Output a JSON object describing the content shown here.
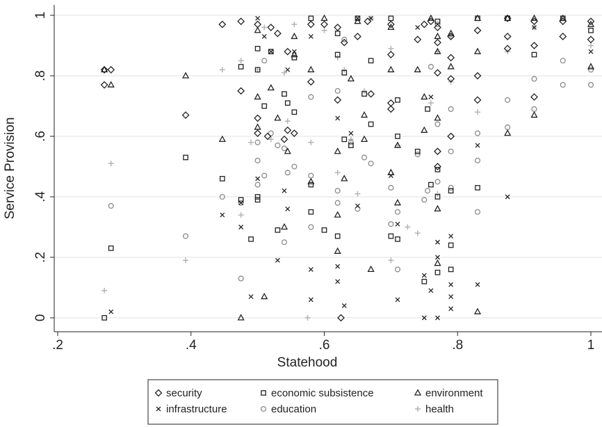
{
  "chart_data": {
    "type": "scatter",
    "xlabel": "Statehood",
    "ylabel": "Service Provision",
    "xlim": [
      0.2,
      1.0
    ],
    "ylim": [
      0,
      1.0
    ],
    "xticks": [
      ".2",
      ".4",
      ".6",
      ".8",
      "1"
    ],
    "yticks": [
      "0",
      ".2",
      ".4",
      ".6",
      ".8",
      "1"
    ],
    "grid": "horizontal",
    "legend_position": "bottom",
    "colors": {
      "black": "#222222",
      "gray": "#8a8a8a",
      "light": "#b4b4b4",
      "grid": "#e6e6e6"
    },
    "series": [
      {
        "name": "security",
        "marker": "diamond",
        "color": "black",
        "points": [
          [
            0.27,
            0.82
          ],
          [
            0.28,
            0.82
          ],
          [
            0.27,
            0.77
          ],
          [
            0.392,
            0.67
          ],
          [
            0.447,
            0.97
          ],
          [
            0.475,
            0.98
          ],
          [
            0.475,
            0.75
          ],
          [
            0.5,
            0.97
          ],
          [
            0.5,
            0.66
          ],
          [
            0.5,
            0.61
          ],
          [
            0.515,
            0.6
          ],
          [
            0.52,
            0.96
          ],
          [
            0.53,
            0.94
          ],
          [
            0.54,
            0.59
          ],
          [
            0.545,
            0.88
          ],
          [
            0.545,
            0.62
          ],
          [
            0.555,
            0.61
          ],
          [
            0.58,
            0.97
          ],
          [
            0.58,
            0.78
          ],
          [
            0.6,
            0.97
          ],
          [
            0.62,
            0.96
          ],
          [
            0.62,
            0.72
          ],
          [
            0.625,
            0.0
          ],
          [
            0.63,
            0.91
          ],
          [
            0.65,
            0.93
          ],
          [
            0.665,
            0.98
          ],
          [
            0.67,
            0.74
          ],
          [
            0.7,
            0.97
          ],
          [
            0.7,
            0.87
          ],
          [
            0.7,
            0.71
          ],
          [
            0.7,
            0.69
          ],
          [
            0.74,
            0.92
          ],
          [
            0.75,
            0.97
          ],
          [
            0.76,
            0.98
          ],
          [
            0.77,
            0.96
          ],
          [
            0.77,
            0.91
          ],
          [
            0.77,
            0.81
          ],
          [
            0.77,
            0.55
          ],
          [
            0.77,
            0.5
          ],
          [
            0.79,
            0.93
          ],
          [
            0.79,
            0.86
          ],
          [
            0.79,
            0.79
          ],
          [
            0.79,
            0.6
          ],
          [
            0.83,
            0.95
          ],
          [
            0.83,
            0.8
          ],
          [
            0.83,
            0.72
          ],
          [
            0.875,
            0.99
          ],
          [
            0.875,
            0.93
          ],
          [
            0.875,
            0.89
          ],
          [
            0.915,
            0.98
          ],
          [
            0.915,
            0.9
          ],
          [
            0.915,
            0.73
          ],
          [
            0.958,
            0.98
          ],
          [
            0.958,
            0.93
          ],
          [
            1.0,
            0.98
          ],
          [
            1.0,
            0.92
          ]
        ]
      },
      {
        "name": "economic subsistence",
        "marker": "square",
        "color": "black",
        "points": [
          [
            0.27,
            0.0
          ],
          [
            0.28,
            0.23
          ],
          [
            0.392,
            0.53
          ],
          [
            0.447,
            0.46
          ],
          [
            0.475,
            0.83
          ],
          [
            0.475,
            0.39
          ],
          [
            0.49,
            0.26
          ],
          [
            0.5,
            0.89
          ],
          [
            0.5,
            0.82
          ],
          [
            0.5,
            0.4
          ],
          [
            0.5,
            0.39
          ],
          [
            0.51,
            0.7
          ],
          [
            0.52,
            0.88
          ],
          [
            0.53,
            0.29
          ],
          [
            0.54,
            0.74
          ],
          [
            0.545,
            0.71
          ],
          [
            0.555,
            0.86
          ],
          [
            0.555,
            0.68
          ],
          [
            0.58,
            0.99
          ],
          [
            0.58,
            0.44
          ],
          [
            0.58,
            0.35
          ],
          [
            0.6,
            0.29
          ],
          [
            0.62,
            0.27
          ],
          [
            0.62,
            0.94
          ],
          [
            0.62,
            0.87
          ],
          [
            0.63,
            0.81
          ],
          [
            0.63,
            0.59
          ],
          [
            0.64,
            0.57
          ],
          [
            0.65,
            0.99
          ],
          [
            0.66,
            0.74
          ],
          [
            0.67,
            0.85
          ],
          [
            0.67,
            0.64
          ],
          [
            0.7,
            0.99
          ],
          [
            0.7,
            0.27
          ],
          [
            0.71,
            0.72
          ],
          [
            0.71,
            0.6
          ],
          [
            0.71,
            0.26
          ],
          [
            0.74,
            0.55
          ],
          [
            0.75,
            0.12
          ],
          [
            0.755,
            0.69
          ],
          [
            0.76,
            0.44
          ],
          [
            0.77,
            0.4
          ],
          [
            0.77,
            0.49
          ],
          [
            0.77,
            0.15
          ],
          [
            0.77,
            0.98
          ],
          [
            0.79,
            0.24
          ],
          [
            0.79,
            0.16
          ],
          [
            0.79,
            0.42
          ],
          [
            0.83,
            0.43
          ],
          [
            0.83,
            0.99
          ],
          [
            0.875,
            0.99
          ],
          [
            0.915,
            0.87
          ],
          [
            0.958,
            0.99
          ],
          [
            1.0,
            0.95
          ]
        ]
      },
      {
        "name": "environment",
        "marker": "triangle",
        "color": "black",
        "points": [
          [
            0.27,
            0.82
          ],
          [
            0.28,
            0.77
          ],
          [
            0.392,
            0.8
          ],
          [
            0.447,
            0.59
          ],
          [
            0.475,
            0.0
          ],
          [
            0.5,
            0.63
          ],
          [
            0.5,
            0.73
          ],
          [
            0.5,
            0.95
          ],
          [
            0.51,
            0.07
          ],
          [
            0.52,
            0.76
          ],
          [
            0.53,
            0.66
          ],
          [
            0.54,
            0.3
          ],
          [
            0.545,
            0.55
          ],
          [
            0.555,
            0.87
          ],
          [
            0.555,
            0.93
          ],
          [
            0.58,
            0.82
          ],
          [
            0.58,
            0.45
          ],
          [
            0.6,
            0.99
          ],
          [
            0.62,
            0.55
          ],
          [
            0.62,
            0.22
          ],
          [
            0.62,
            0.34
          ],
          [
            0.63,
            0.46
          ],
          [
            0.64,
            0.79
          ],
          [
            0.65,
            0.98
          ],
          [
            0.66,
            0.67
          ],
          [
            0.66,
            0.59
          ],
          [
            0.67,
            0.16
          ],
          [
            0.7,
            0.96
          ],
          [
            0.7,
            0.82
          ],
          [
            0.7,
            0.48
          ],
          [
            0.71,
            0.38
          ],
          [
            0.71,
            0.57
          ],
          [
            0.74,
            0.82
          ],
          [
            0.75,
            0.73
          ],
          [
            0.75,
            0.62
          ],
          [
            0.76,
            0.99
          ],
          [
            0.77,
            0.36
          ],
          [
            0.77,
            0.18
          ],
          [
            0.77,
            0.93
          ],
          [
            0.77,
            0.88
          ],
          [
            0.77,
            0.66
          ],
          [
            0.79,
            0.83
          ],
          [
            0.79,
            0.94
          ],
          [
            0.83,
            0.02
          ],
          [
            0.83,
            0.88
          ],
          [
            0.83,
            0.99
          ],
          [
            0.875,
            0.61
          ],
          [
            0.875,
            0.99
          ],
          [
            0.915,
            0.67
          ],
          [
            0.915,
            0.99
          ],
          [
            0.958,
            0.99
          ],
          [
            1.0,
            0.83
          ],
          [
            1.0,
            0.97
          ]
        ]
      },
      {
        "name": "infrastructure",
        "marker": "x",
        "color": "black",
        "points": [
          [
            0.28,
            0.02
          ],
          [
            0.447,
            0.34
          ],
          [
            0.475,
            0.3
          ],
          [
            0.475,
            0.38
          ],
          [
            0.49,
            0.07
          ],
          [
            0.5,
            0.99
          ],
          [
            0.5,
            0.46
          ],
          [
            0.51,
            0.93
          ],
          [
            0.52,
            0.88
          ],
          [
            0.53,
            0.19
          ],
          [
            0.54,
            0.42
          ],
          [
            0.545,
            0.36
          ],
          [
            0.545,
            0.82
          ],
          [
            0.555,
            0.88
          ],
          [
            0.58,
            0.06
          ],
          [
            0.58,
            0.16
          ],
          [
            0.58,
            0.93
          ],
          [
            0.62,
            0.17
          ],
          [
            0.62,
            0.12
          ],
          [
            0.62,
            0.66
          ],
          [
            0.63,
            0.04
          ],
          [
            0.64,
            0.61
          ],
          [
            0.65,
            0.99
          ],
          [
            0.65,
            0.37
          ],
          [
            0.67,
            0.99
          ],
          [
            0.7,
            0.47
          ],
          [
            0.71,
            0.06
          ],
          [
            0.71,
            0.31
          ],
          [
            0.74,
            0.96
          ],
          [
            0.75,
            0.0
          ],
          [
            0.75,
            0.14
          ],
          [
            0.76,
            0.73
          ],
          [
            0.76,
            0.09
          ],
          [
            0.77,
            0.25
          ],
          [
            0.77,
            0.0
          ],
          [
            0.77,
            0.2
          ],
          [
            0.79,
            0.27
          ],
          [
            0.79,
            0.11
          ],
          [
            0.79,
            0.07
          ],
          [
            0.79,
            0.03
          ],
          [
            0.83,
            0.57
          ],
          [
            0.83,
            0.11
          ],
          [
            0.875,
            0.4
          ],
          [
            0.915,
            0.96
          ],
          [
            1.0,
            0.88
          ]
        ]
      },
      {
        "name": "education",
        "marker": "circle",
        "color": "gray",
        "points": [
          [
            0.28,
            0.37
          ],
          [
            0.392,
            0.27
          ],
          [
            0.447,
            0.4
          ],
          [
            0.475,
            0.13
          ],
          [
            0.475,
            0.38
          ],
          [
            0.5,
            0.58
          ],
          [
            0.5,
            0.52
          ],
          [
            0.5,
            0.44
          ],
          [
            0.51,
            0.47
          ],
          [
            0.51,
            0.85
          ],
          [
            0.52,
            0.61
          ],
          [
            0.53,
            0.57
          ],
          [
            0.54,
            0.25
          ],
          [
            0.54,
            0.56
          ],
          [
            0.545,
            0.48
          ],
          [
            0.555,
            0.5
          ],
          [
            0.58,
            0.3
          ],
          [
            0.58,
            0.47
          ],
          [
            0.58,
            0.73
          ],
          [
            0.62,
            0.38
          ],
          [
            0.62,
            0.42
          ],
          [
            0.62,
            0.75
          ],
          [
            0.63,
            0.92
          ],
          [
            0.64,
            0.58
          ],
          [
            0.65,
            0.36
          ],
          [
            0.66,
            0.53
          ],
          [
            0.67,
            0.51
          ],
          [
            0.7,
            0.43
          ],
          [
            0.7,
            0.31
          ],
          [
            0.71,
            0.16
          ],
          [
            0.71,
            0.35
          ],
          [
            0.74,
            0.54
          ],
          [
            0.75,
            0.39
          ],
          [
            0.755,
            0.42
          ],
          [
            0.76,
            0.83
          ],
          [
            0.77,
            0.64
          ],
          [
            0.77,
            0.45
          ],
          [
            0.77,
            0.97
          ],
          [
            0.79,
            0.43
          ],
          [
            0.79,
            0.69
          ],
          [
            0.79,
            0.55
          ],
          [
            0.83,
            0.35
          ],
          [
            0.83,
            0.52
          ],
          [
            0.83,
            0.61
          ],
          [
            0.875,
            0.63
          ],
          [
            0.875,
            0.72
          ],
          [
            0.915,
            0.69
          ],
          [
            0.915,
            0.79
          ],
          [
            0.958,
            0.77
          ],
          [
            0.958,
            0.85
          ],
          [
            1.0,
            0.77
          ],
          [
            1.0,
            0.82
          ]
        ]
      },
      {
        "name": "health",
        "marker": "plus",
        "color": "light",
        "points": [
          [
            0.27,
            0.09
          ],
          [
            0.28,
            0.51
          ],
          [
            0.392,
            0.19
          ],
          [
            0.447,
            0.82
          ],
          [
            0.475,
            0.85
          ],
          [
            0.475,
            0.34
          ],
          [
            0.49,
            0.58
          ],
          [
            0.5,
            0.82
          ],
          [
            0.51,
            0.96
          ],
          [
            0.52,
            0.59
          ],
          [
            0.54,
            0.81
          ],
          [
            0.545,
            0.65
          ],
          [
            0.555,
            0.97
          ],
          [
            0.575,
            0.0
          ],
          [
            0.58,
            0.58
          ],
          [
            0.6,
            0.95
          ],
          [
            0.62,
            0.48
          ],
          [
            0.62,
            0.86
          ],
          [
            0.63,
            0.82
          ],
          [
            0.64,
            0.59
          ],
          [
            0.65,
            0.41
          ],
          [
            0.66,
            0.75
          ],
          [
            0.67,
            0.99
          ],
          [
            0.7,
            0.19
          ],
          [
            0.7,
            0.89
          ],
          [
            0.71,
            0.57
          ],
          [
            0.725,
            0.3
          ],
          [
            0.74,
            0.28
          ],
          [
            0.76,
            0.71
          ],
          [
            0.77,
            0.88
          ],
          [
            0.77,
            0.41
          ],
          [
            0.79,
            0.93
          ],
          [
            0.79,
            0.78
          ],
          [
            0.83,
            0.68
          ],
          [
            0.875,
            0.88
          ],
          [
            0.915,
            0.96
          ],
          [
            1.0,
            0.9
          ]
        ]
      }
    ]
  }
}
